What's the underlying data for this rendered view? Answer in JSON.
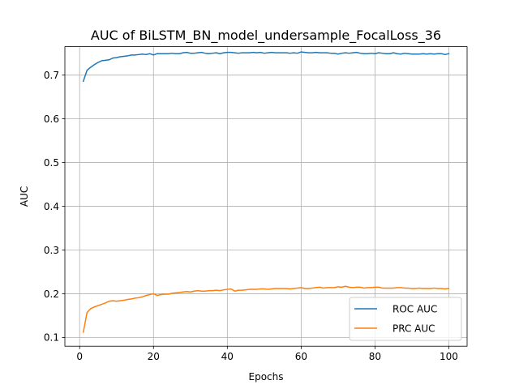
{
  "chart_data": {
    "type": "line",
    "title": "AUC of BiLSTM_BN_model_undersample_FocalLoss_36",
    "xlabel": "Epochs",
    "ylabel": "AUC",
    "xlim": [
      -4,
      104.95
    ],
    "ylim": [
      0.08,
      0.765
    ],
    "xticks": [
      0,
      20,
      40,
      60,
      80,
      100
    ],
    "yticks": [
      0.1,
      0.2,
      0.3,
      0.4,
      0.5,
      0.6,
      0.7
    ],
    "xtick_labels": [
      "0",
      "20",
      "40",
      "60",
      "80",
      "100"
    ],
    "ytick_labels": [
      "0.1",
      "0.2",
      "0.3",
      "0.4",
      "0.5",
      "0.6",
      "0.7"
    ],
    "grid": true,
    "legend_position": "lower-right",
    "x": [
      1,
      2,
      3,
      4,
      5,
      6,
      7,
      8,
      9,
      10,
      11,
      12,
      13,
      14,
      15,
      16,
      17,
      18,
      19,
      20,
      21,
      22,
      23,
      24,
      25,
      26,
      27,
      28,
      29,
      30,
      31,
      32,
      33,
      34,
      35,
      36,
      37,
      38,
      39,
      40,
      41,
      42,
      43,
      44,
      45,
      46,
      47,
      48,
      49,
      50,
      51,
      52,
      53,
      54,
      55,
      56,
      57,
      58,
      59,
      60,
      61,
      62,
      63,
      64,
      65,
      66,
      67,
      68,
      69,
      70,
      71,
      72,
      73,
      74,
      75,
      76,
      77,
      78,
      79,
      80,
      81,
      82,
      83,
      84,
      85,
      86,
      87,
      88,
      89,
      90,
      91,
      92,
      93,
      94,
      95,
      96,
      97,
      98,
      99,
      100
    ],
    "series": [
      {
        "name": "ROC AUC",
        "color": "#1f77b4",
        "values": [
          0.686,
          0.711,
          0.718,
          0.724,
          0.729,
          0.733,
          0.734,
          0.735,
          0.739,
          0.74,
          0.742,
          0.743,
          0.744,
          0.746,
          0.746,
          0.747,
          0.748,
          0.747,
          0.749,
          0.746,
          0.749,
          0.749,
          0.749,
          0.749,
          0.75,
          0.749,
          0.749,
          0.751,
          0.752,
          0.75,
          0.75,
          0.751,
          0.752,
          0.75,
          0.749,
          0.75,
          0.751,
          0.749,
          0.751,
          0.752,
          0.752,
          0.751,
          0.75,
          0.751,
          0.751,
          0.751,
          0.752,
          0.751,
          0.752,
          0.75,
          0.751,
          0.752,
          0.751,
          0.751,
          0.751,
          0.751,
          0.75,
          0.751,
          0.75,
          0.753,
          0.752,
          0.751,
          0.751,
          0.752,
          0.751,
          0.751,
          0.751,
          0.75,
          0.75,
          0.748,
          0.75,
          0.751,
          0.75,
          0.751,
          0.752,
          0.75,
          0.749,
          0.749,
          0.75,
          0.749,
          0.751,
          0.75,
          0.749,
          0.749,
          0.751,
          0.749,
          0.748,
          0.75,
          0.749,
          0.748,
          0.748,
          0.748,
          0.749,
          0.748,
          0.749,
          0.748,
          0.749,
          0.749,
          0.747,
          0.749
        ]
      },
      {
        "name": "PRC AUC",
        "color": "#ff7f0e",
        "values": [
          0.112,
          0.157,
          0.166,
          0.17,
          0.173,
          0.176,
          0.179,
          0.183,
          0.184,
          0.183,
          0.184,
          0.185,
          0.187,
          0.188,
          0.19,
          0.191,
          0.193,
          0.196,
          0.198,
          0.2,
          0.196,
          0.198,
          0.199,
          0.199,
          0.201,
          0.202,
          0.203,
          0.204,
          0.205,
          0.204,
          0.206,
          0.207,
          0.206,
          0.206,
          0.207,
          0.207,
          0.208,
          0.207,
          0.209,
          0.21,
          0.211,
          0.206,
          0.208,
          0.208,
          0.209,
          0.21,
          0.21,
          0.21,
          0.211,
          0.211,
          0.21,
          0.211,
          0.212,
          0.212,
          0.212,
          0.212,
          0.211,
          0.212,
          0.213,
          0.214,
          0.212,
          0.212,
          0.213,
          0.214,
          0.215,
          0.213,
          0.214,
          0.214,
          0.214,
          0.216,
          0.215,
          0.217,
          0.215,
          0.214,
          0.215,
          0.215,
          0.213,
          0.214,
          0.214,
          0.215,
          0.215,
          0.213,
          0.213,
          0.213,
          0.213,
          0.214,
          0.214,
          0.213,
          0.213,
          0.212,
          0.212,
          0.213,
          0.212,
          0.212,
          0.212,
          0.213,
          0.212,
          0.212,
          0.211,
          0.212
        ]
      }
    ]
  }
}
